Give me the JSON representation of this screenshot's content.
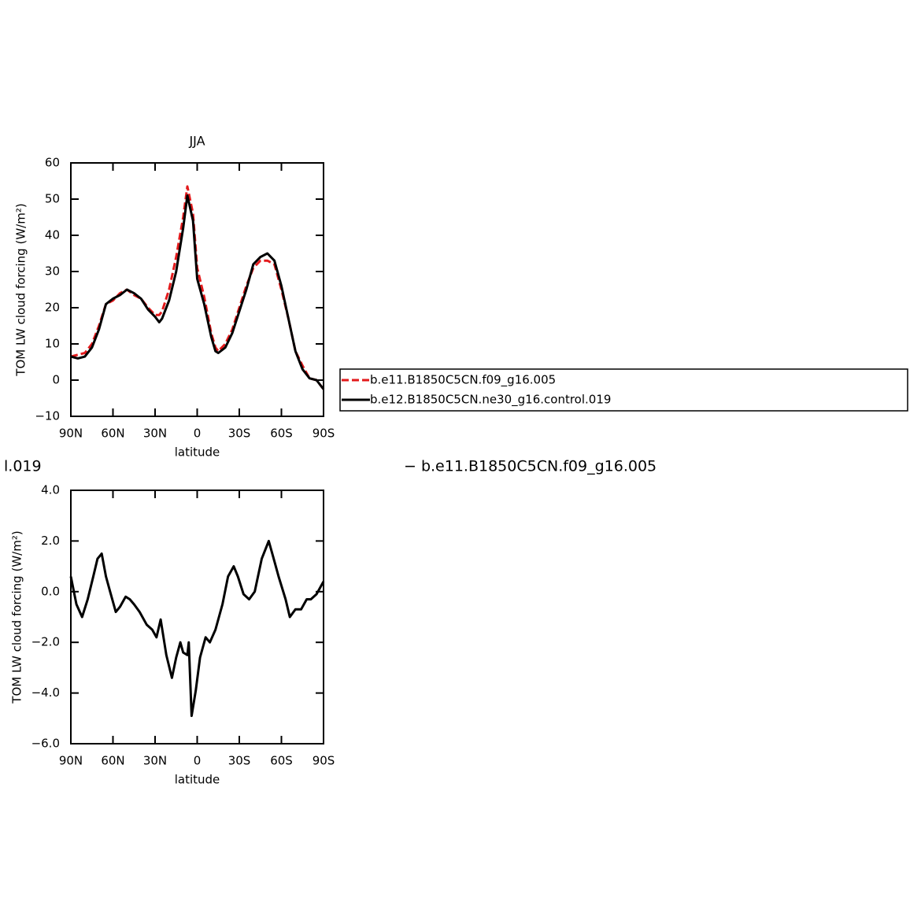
{
  "chart_data": [
    {
      "type": "line",
      "title": "JJA",
      "x_label": "latitude",
      "y_label": "TOM LW cloud forcing (W/m²)",
      "x": [
        90,
        85,
        80,
        75,
        70,
        65,
        60,
        55,
        50,
        45,
        40,
        35,
        30,
        27,
        25,
        20,
        15,
        10,
        7,
        3,
        0,
        -5,
        -10,
        -13,
        -15,
        -20,
        -25,
        -30,
        -35,
        -40,
        -45,
        -50,
        -55,
        -60,
        -65,
        -70,
        -75,
        -80,
        -85,
        -90
      ],
      "series": [
        {
          "name": "b.e11.B1850C5CN.f09_g16.005",
          "color": "#e31a1c",
          "dash": true,
          "values": [
            6.5,
            7,
            7.5,
            10,
            15,
            21,
            22,
            24,
            25,
            23.5,
            22.5,
            20,
            18,
            18,
            19,
            25,
            34,
            45,
            53.5,
            46,
            31,
            23,
            13,
            9,
            8,
            10,
            14,
            20,
            26,
            31,
            33,
            33,
            32,
            25,
            17,
            8,
            4,
            0.5,
            0,
            -2.5
          ]
        },
        {
          "name": "b.e12.B1850C5CN.ne30_g16.control.019",
          "color": "#000000",
          "dash": false,
          "values": [
            6.5,
            6,
            6.5,
            9,
            14,
            21,
            22.5,
            23.5,
            25,
            24,
            22.5,
            19.5,
            17.5,
            16,
            17,
            22,
            30,
            42,
            51,
            44,
            28,
            21,
            12,
            8,
            7.5,
            9,
            13,
            19,
            25,
            32,
            34,
            35,
            33,
            26,
            17,
            8,
            3,
            0.5,
            0,
            -2.5
          ]
        }
      ],
      "xlim": [
        90,
        -90
      ],
      "xticks": [
        {
          "value": 90,
          "label": "90N"
        },
        {
          "value": 60,
          "label": "60N"
        },
        {
          "value": 30,
          "label": "30N"
        },
        0,
        {
          "value": -30,
          "label": "30S"
        },
        {
          "value": -60,
          "label": "60S"
        },
        {
          "value": -90,
          "label": "90S"
        }
      ],
      "ylim": [
        -10,
        60
      ],
      "yticks": [
        {
          "value": -10,
          "label": "−10"
        },
        0,
        10,
        20,
        30,
        40,
        50,
        60
      ]
    },
    {
      "type": "line",
      "x_label": "latitude",
      "y_label": "TOM LW cloud forcing (W/m²)",
      "annotations": [
        "l.019",
        "− b.e11.B1850C5CN.f09_g16.005"
      ],
      "x": [
        90,
        86,
        82,
        78,
        74,
        71,
        68,
        65,
        62,
        58,
        55,
        51,
        48,
        45,
        41,
        36,
        32,
        29,
        26,
        22,
        18,
        15,
        12,
        10,
        7,
        6,
        4,
        1,
        -2,
        -6,
        -9,
        -13,
        -18,
        -22,
        -26,
        -29,
        -33,
        -37,
        -41,
        -46,
        -51,
        -55,
        -58,
        -63,
        -66,
        -70,
        -74,
        -78,
        -81,
        -85,
        -90
      ],
      "series": [
        {
          "color": "#000000",
          "dash": false,
          "values": [
            0.6,
            -0.5,
            -1,
            -0.3,
            0.6,
            1.3,
            1.5,
            0.6,
            0,
            -0.8,
            -0.6,
            -0.2,
            -0.3,
            -0.5,
            -0.8,
            -1.3,
            -1.5,
            -1.8,
            -1.1,
            -2.5,
            -3.4,
            -2.6,
            -2,
            -2.4,
            -2.5,
            -2,
            -4.9,
            -3.9,
            -2.6,
            -1.8,
            -2,
            -1.5,
            -0.5,
            0.6,
            1,
            0.6,
            -0.1,
            -0.3,
            0,
            1.3,
            2,
            1.2,
            0.6,
            -0.3,
            -1,
            -0.7,
            -0.7,
            -0.3,
            -0.3,
            -0.1,
            0.4
          ]
        }
      ],
      "xlim": [
        90,
        -90
      ],
      "xticks": [
        {
          "value": 90,
          "label": "90N"
        },
        {
          "value": 60,
          "label": "60N"
        },
        {
          "value": 30,
          "label": "30N"
        },
        0,
        {
          "value": -30,
          "label": "30S"
        },
        {
          "value": -60,
          "label": "60S"
        },
        {
          "value": -90,
          "label": "90S"
        }
      ],
      "ylim": [
        -6,
        4
      ],
      "yticks": [
        {
          "value": -6,
          "label": "−6.0"
        },
        {
          "value": -4,
          "label": "−4.0"
        },
        {
          "value": -2,
          "label": "−2.0"
        },
        {
          "value": 0,
          "label": "0.0"
        },
        {
          "value": 2,
          "label": "2.0"
        },
        {
          "value": 4,
          "label": "4.0"
        }
      ]
    }
  ]
}
